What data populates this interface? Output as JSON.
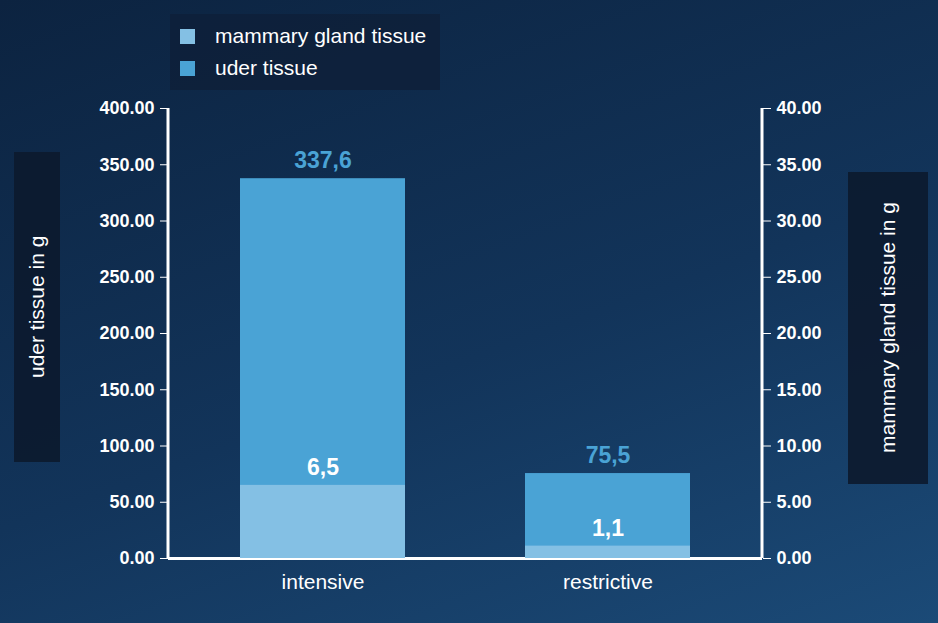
{
  "chart_data": {
    "type": "bar",
    "categories": [
      "intensive",
      "restrictive"
    ],
    "series": [
      {
        "name": "mammary gland tissue",
        "color": "#84c0e4",
        "values": [
          6.5,
          1.1
        ],
        "value_labels": [
          "6,5",
          "1,1"
        ],
        "axis": "y2"
      },
      {
        "name": "uder tissue",
        "color": "#4aa3d5",
        "values": [
          337.6,
          75.5
        ],
        "value_labels": [
          "337,6",
          "75,5"
        ]
      }
    ],
    "ylabel": "uder tissue in g",
    "y2label": "mammary gland tissue in g",
    "ylim": [
      0,
      400
    ],
    "yticks": [
      {
        "value": 0,
        "label": "0.00"
      },
      {
        "value": 50,
        "label": "50.00"
      },
      {
        "value": 100,
        "label": "100.00"
      },
      {
        "value": 150,
        "label": "150.00"
      },
      {
        "value": 200,
        "label": "200.00"
      },
      {
        "value": 250,
        "label": "250.00"
      },
      {
        "value": 300,
        "label": "300.00"
      },
      {
        "value": 350,
        "label": "350.00"
      },
      {
        "value": 400,
        "label": "400.00"
      }
    ],
    "y2lim": [
      0,
      40
    ],
    "y2ticks": [
      {
        "value": 0,
        "label": "0.00"
      },
      {
        "value": 5,
        "label": "5.00"
      },
      {
        "value": 10,
        "label": "10.00"
      },
      {
        "value": 15,
        "label": "15.00"
      },
      {
        "value": 20,
        "label": "20.00"
      },
      {
        "value": 25,
        "label": "25.00"
      },
      {
        "value": 30,
        "label": "30.00"
      },
      {
        "value": 35,
        "label": "35.00"
      },
      {
        "value": 40,
        "label": "40.00"
      }
    ],
    "data_labels": true,
    "legend": "top-left"
  }
}
